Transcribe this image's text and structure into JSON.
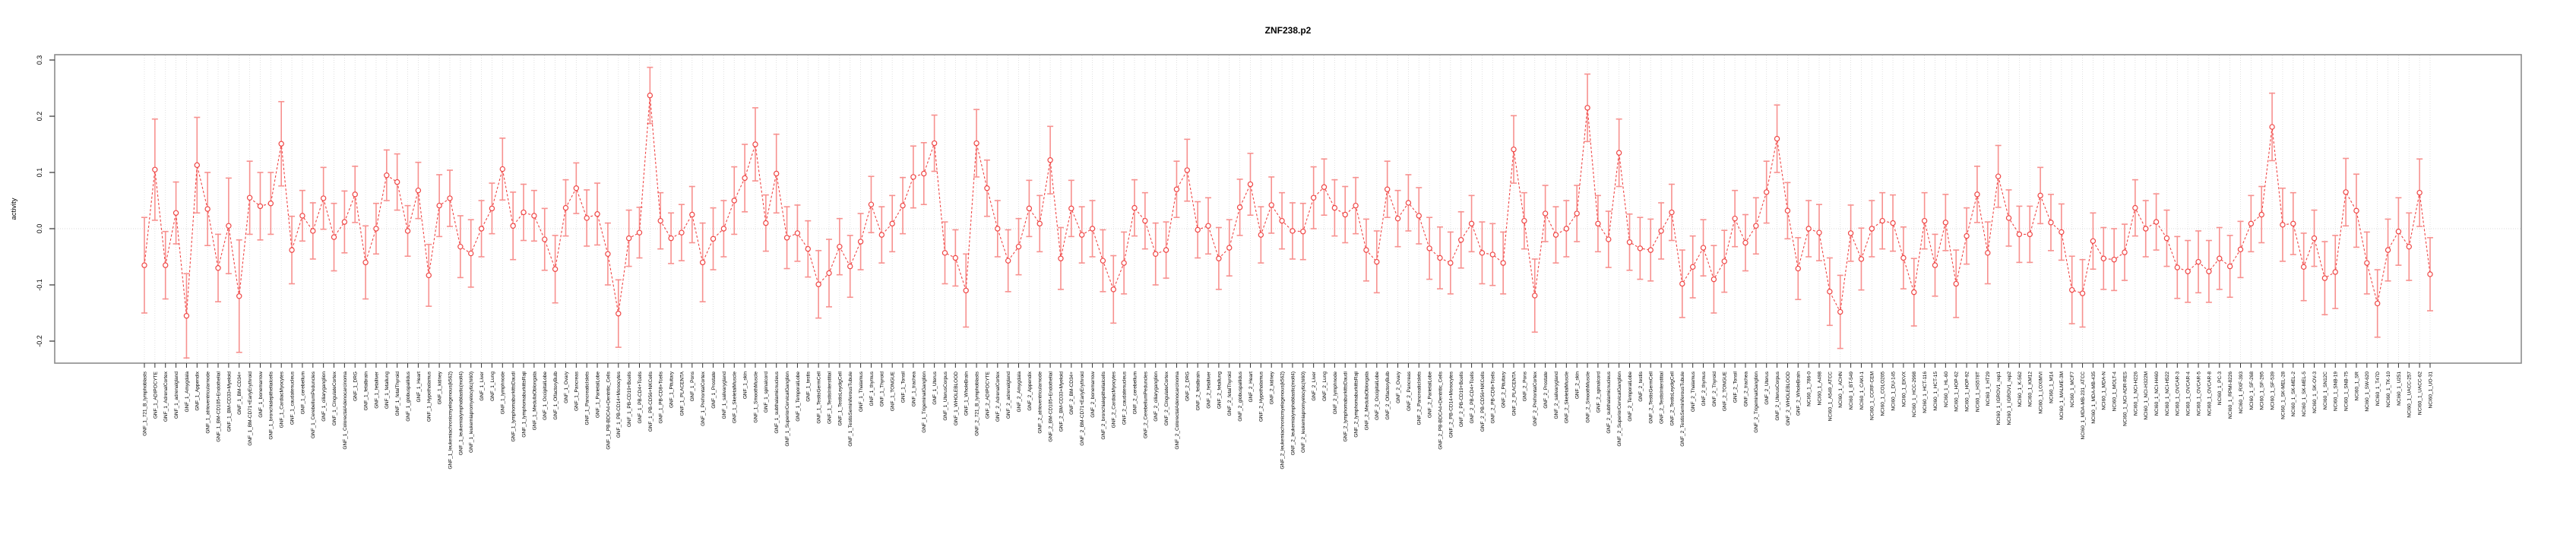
{
  "chart_data": {
    "type": "line",
    "title": "ZNF238.p2",
    "xlabel": "",
    "ylabel": "activity",
    "ylim": [
      -0.245,
      0.315
    ],
    "yticks": [
      0.3,
      0.2,
      0.1,
      0.0,
      -0.1,
      -0.2
    ],
    "ytick_labels": [
      "0.3",
      "0.2",
      "0.1",
      "0.0",
      "-0.1",
      "-0.2"
    ],
    "legend": "none",
    "grid": "dotted vertical line per category; dotted horizontal line at 0",
    "marker": "open circle with dashed connecting line and capped error bars",
    "colors": {
      "series": "#ef4645",
      "error_bars": "#f7918f",
      "grid": "#d9d9d9",
      "box": "#8c8c8c",
      "title": "#000000"
    },
    "categories": [
      "GNF_1_721_B_lymphoblasts",
      "GNF_1_ADIPOCYTE",
      "GNF_1_AdrenalCortex",
      "GNF_1_adrenalgland",
      "GNF_1_Amygdala",
      "GNF_1_Appendix",
      "GNF_1_atrioventricularnode",
      "GNF_1_BM-CD105+Endothelial",
      "GNF_1_BM-CD33+Myeloid",
      "GNF_1_BM-CD34+",
      "GNF_1_BM-CD71+EarlyErythroid",
      "GNF_1_bonemarrow",
      "GNF_1_bronchialepithelialcells",
      "GNF_1_CardiacMyocytes",
      "GNF_1_caudatenucleus",
      "GNF_1_cerebellum",
      "GNF_1_CerebellumPeduncles",
      "GNF_1_ciliaryganglion",
      "GNF_1_CingulateCortex",
      "GNF_1_ColorectalAdenocarcinoma",
      "GNF_1_DRG",
      "GNF_1_fetalbrain",
      "GNF_1_fetalliver",
      "GNF_1_fetallung",
      "GNF_1_fetalThyroid",
      "GNF_1_globuspallidus",
      "GNF_1_Heart",
      "GNF_1_Hypothalamus",
      "GNF_1_kidney",
      "GNF_1_leukemiachronicmyelogenous(k562)",
      "GNF_1_leukemialymphoblastic(molt4)",
      "GNF_1_leukemiapromyelocytic(hl60)",
      "GNF_1_Liver",
      "GNF_1_Lung",
      "GNF_1_lymphnode",
      "GNF_1_lymphomaburkittsDaudi",
      "GNF_1_lymphomaburkittsRaji",
      "GNF_1_MedullaOblongata",
      "GNF_1_OccipitalLobe",
      "GNF_1_OlfactoryBulb",
      "GNF_1_Ovary",
      "GNF_1_Pancreas",
      "GNF_1_PancreaticIslets",
      "GNF_1_ParietalLobe",
      "GNF_1_PB-BDCA4+Dentritic_Cells",
      "GNF_1_PB-CD14+Monocytes",
      "GNF_1_PB-CD19+Bcells",
      "GNF_1_PB-CD4+Tcells",
      "GNF_1_PB-CD56+NKCells",
      "GNF_1_PB-CD8+Tcells",
      "GNF_1_Pituitary",
      "GNF_1_PLACENTA",
      "GNF_1_Pons",
      "GNF_1_PrefrontalCortex",
      "GNF_1_Prostate",
      "GNF_1_salivarygland",
      "GNF_1_SkeletalMuscle",
      "GNF_1_skin",
      "GNF_1_SmoothMuscle",
      "GNF_1_spinalcord",
      "GNF_1_subthalamicnucleus",
      "GNF_1_SuperiorCervicalGanglion",
      "GNF_1_TemporalLobe",
      "GNF_1_testis",
      "GNF_1_TestisGermCell",
      "GNF_1_TestisInterstitial",
      "GNF_1_TestisLeydigCell",
      "GNF_1_TestisSeminiferousTubule",
      "GNF_1_Thalamus",
      "GNF_1_thymus",
      "GNF_1_Thyroid",
      "GNF_1_TONGUE",
      "GNF_1_Tonsil",
      "GNF_1_trachea",
      "GNF_1_TrigeminalGanglion",
      "GNF_1_Uterus",
      "GNF_1_UterusCorpus",
      "GNF_1_WHOLEBLOOD",
      "GNF_1_WholeBrain",
      "GNF_2_721_B_lymphoblasts",
      "GNF_2_ADIPOCYTE",
      "GNF_2_AdrenalCortex",
      "GNF_2_adrenalgland",
      "GNF_2_Amygdala",
      "GNF_2_Appendix",
      "GNF_2_atrioventricularnode",
      "GNF_2_BM-CD105+Endothelial",
      "GNF_2_BM-CD33+Myeloid",
      "GNF_2_BM-CD34+",
      "GNF_2_BM-CD71+EarlyErythroid",
      "GNF_2_bonemarrow",
      "GNF_2_bronchialepithelialcells",
      "GNF_2_CardiacMyocytes",
      "GNF_2_caudatenucleus",
      "GNF_2_cerebellum",
      "GNF_2_CerebellumPeduncles",
      "GNF_2_ciliaryganglion",
      "GNF_2_CingulateCortex",
      "GNF_2_ColorectalAdenocarcinoma",
      "GNF_2_DRG",
      "GNF_2_fetalbrain",
      "GNF_2_fetalliver",
      "GNF_2_fetallung",
      "GNF_2_fetalThyroid",
      "GNF_2_globuspallidus",
      "GNF_2_Heart",
      "GNF_2_Hypothalamus",
      "GNF_2_kidney",
      "GNF_2_leukemiachronicmyelogenous(k562)",
      "GNF_2_leukemialymphoblastic(molt4)",
      "GNF_2_leukemiapromyelocytic(hl60)",
      "GNF_2_Liver",
      "GNF_2_Lung",
      "GNF_2_lymphnode",
      "GNF_2_lymphomaburkittsDaudi",
      "GNF_2_lymphomaburkittsRaji",
      "GNF_2_MedullaOblongata",
      "GNF_2_OccipitalLobe",
      "GNF_2_OlfactoryBulb",
      "GNF_2_Ovary",
      "GNF_2_Pancreas",
      "GNF_2_PancreaticIslets",
      "GNF_2_ParietalLobe",
      "GNF_2_PB-BDCA4+Dentritic_Cells",
      "GNF_2_PB-CD14+Monocytes",
      "GNF_2_PB-CD19+Bcells",
      "GNF_2_PB-CD4+Tcells",
      "GNF_2_PB-CD56+NKCells",
      "GNF_2_PB-CD8+Tcells",
      "GNF_2_Pituitary",
      "GNF_2_PLACENTA",
      "GNF_2_Pons",
      "GNF_2_PrefrontalCortex",
      "GNF_2_Prostate",
      "GNF_2_salivarygland",
      "GNF_2_SkeletalMuscle",
      "GNF_2_skin",
      "GNF_2_SmoothMuscle",
      "GNF_2_spinalcord",
      "GNF_2_subthalamicnucleus",
      "GNF_2_SuperiorCervicalGanglion",
      "GNF_2_TemporalLobe",
      "GNF_2_testis",
      "GNF_2_TestisGermCell",
      "GNF_2_TestisInterstitial",
      "GNF_2_TestisLeydigCell",
      "GNF_2_TestisSeminiferousTubule",
      "GNF_2_Thalamus",
      "GNF_2_thymus",
      "GNF_2_Thyroid",
      "GNF_2_TONGUE",
      "GNF_2_Tonsil",
      "GNF_2_trachea",
      "GNF_2_TrigeminalGanglion",
      "GNF_2_Uterus",
      "GNF_2_UterusCorpus",
      "GNF_2_WHOLEBLOOD",
      "GNF_2_WholeBrain",
      "NCI60_1_786-0",
      "NCI60_1_A498",
      "NCI60_1_A549_ATCC",
      "NCI60_1_ACHN",
      "NCI60_1_BT-549",
      "NCI60_1_CAKI-1",
      "NCI60_1_CCRF-CEM",
      "NCI60_1_COLO205",
      "NCI60_1_DU-145",
      "NCI60_1_EKVX",
      "NCI60_1_HCC-2998",
      "NCI60_1_HCT-116",
      "NCI60_1_HCT-15",
      "NCI60_1_HL-60",
      "NCI60_1_HOP-62",
      "NCI60_1_HOP-92",
      "NCI60_1_HS578T",
      "NCI60_1_HT29",
      "NCI60_1_IGROV1_rep1",
      "NCI60_1_IGROV1_rep2",
      "NCI60_1_K-562",
      "NCI60_1_KM12",
      "NCI60_1_LOXIMVI",
      "NCI60_1_M14",
      "NCI60_1_MALME-3M",
      "NCI60_1_MCF7",
      "NCI60_1_MDA-MB-231_ATCC",
      "NCI60_1_MDA-MB-435",
      "NCI60_1_MDA-N",
      "NCI60_1_MOLT-4",
      "NCI60_1_NCI-ADR-RES",
      "NCI60_1_NCI-H226",
      "NCI60_1_NCI-H322M",
      "NCI60_1_NCI-H460",
      "NCI60_1_NCI-H522",
      "NCI60_1_OVCAR-3",
      "NCI60_1_OVCAR-4",
      "NCI60_1_OVCAR-5",
      "NCI60_1_OVCAR-8",
      "NCI60_1_PC-3",
      "NCI60_1_RPMI-8226",
      "NCI60_1_RXF-393",
      "NCI60_1_SF-268",
      "NCI60_1_SF-295",
      "NCI60_1_SF-539",
      "NCI60_1_SK-MEL-28",
      "NCI60_1_SK-MEL-2",
      "NCI60_1_SK-MEL-5",
      "NCI60_1_SK-OV-3",
      "NCI60_1_SN12C",
      "NCI60_1_SNB-19",
      "NCI60_1_SNB-75",
      "NCI60_1_SR",
      "NCI60_1_SW-620",
      "NCI60_1_T47D",
      "NCI60_1_TK-10",
      "NCI60_1_U251",
      "NCI60_1_UACC-257",
      "NCI60_1_UACC-62",
      "NCI60_1_UO-31"
    ],
    "values": [
      -0.065,
      0.105,
      -0.065,
      0.028,
      -0.155,
      0.113,
      0.035,
      -0.07,
      0.005,
      -0.12,
      0.055,
      0.04,
      0.045,
      0.151,
      -0.038,
      0.023,
      -0.004,
      0.054,
      -0.015,
      0.012,
      0.061,
      -0.06,
      0.0,
      0.095,
      0.083,
      -0.004,
      0.068,
      -0.083,
      0.041,
      0.054,
      -0.032,
      -0.044,
      0.0,
      0.036,
      0.106,
      0.005,
      0.029,
      0.023,
      -0.019,
      -0.072,
      0.037,
      0.072,
      0.019,
      0.026,
      -0.045,
      -0.151,
      -0.017,
      -0.007,
      0.237,
      0.014,
      -0.017,
      -0.007,
      0.025,
      -0.06,
      -0.018,
      0.0,
      0.05,
      0.09,
      0.15,
      0.01,
      0.098,
      -0.016,
      -0.008,
      -0.036,
      -0.099,
      -0.079,
      -0.032,
      -0.067,
      -0.023,
      0.043,
      -0.011,
      0.009,
      0.041,
      0.092,
      0.098,
      0.152,
      -0.043,
      -0.052,
      -0.11,
      0.152,
      0.072,
      0.0,
      -0.057,
      -0.032,
      0.036,
      0.009,
      0.122,
      -0.053,
      0.036,
      -0.011,
      0.0,
      -0.057,
      -0.108,
      -0.061,
      0.037,
      0.014,
      -0.045,
      -0.038,
      0.07,
      0.104,
      -0.002,
      0.005,
      -0.053,
      -0.034,
      0.038,
      0.079,
      -0.011,
      0.042,
      0.014,
      -0.004,
      -0.005,
      0.055,
      0.074,
      0.037,
      0.025,
      0.041,
      -0.038,
      -0.059,
      0.07,
      0.018,
      0.046,
      0.023,
      -0.035,
      -0.052,
      -0.061,
      -0.02,
      0.009,
      -0.043,
      -0.046,
      -0.061,
      0.141,
      0.014,
      -0.119,
      0.027,
      -0.011,
      0.0,
      0.027,
      0.215,
      0.009,
      -0.019,
      0.135,
      -0.024,
      -0.035,
      -0.038,
      -0.004,
      0.029,
      -0.098,
      -0.068,
      -0.034,
      -0.09,
      -0.058,
      0.018,
      -0.025,
      0.005,
      0.065,
      0.16,
      0.032,
      -0.071,
      0.0,
      -0.007,
      -0.112,
      -0.148,
      -0.008,
      -0.054,
      0.0,
      0.014,
      0.01,
      -0.052,
      -0.113,
      0.014,
      -0.065,
      0.011,
      -0.098,
      -0.013,
      0.061,
      -0.043,
      0.093,
      0.019,
      -0.01,
      -0.01,
      0.059,
      0.011,
      -0.006,
      -0.109,
      -0.115,
      -0.022,
      -0.053,
      -0.055,
      -0.042,
      0.037,
      0.0,
      0.012,
      -0.017,
      -0.069,
      -0.076,
      -0.059,
      -0.076,
      -0.053,
      -0.067,
      -0.037,
      0.009,
      0.025,
      0.181,
      0.007,
      0.009,
      -0.068,
      -0.017,
      -0.088,
      -0.077,
      0.065,
      0.032,
      -0.061,
      -0.133,
      -0.038,
      -0.005,
      -0.032,
      0.064,
      -0.081
    ],
    "errors": [
      0.085,
      0.09,
      0.06,
      0.055,
      0.075,
      0.085,
      0.065,
      0.06,
      0.085,
      0.1,
      0.065,
      0.06,
      0.055,
      0.075,
      0.06,
      0.045,
      0.05,
      0.055,
      0.06,
      0.055,
      0.05,
      0.065,
      0.045,
      0.045,
      0.05,
      0.045,
      0.05,
      0.055,
      0.055,
      0.05,
      0.055,
      0.06,
      0.05,
      0.045,
      0.055,
      0.06,
      0.05,
      0.045,
      0.055,
      0.06,
      0.05,
      0.045,
      0.05,
      0.055,
      0.055,
      0.06,
      0.05,
      0.045,
      0.05,
      0.05,
      0.045,
      0.05,
      0.05,
      0.07,
      0.055,
      0.05,
      0.06,
      0.06,
      0.065,
      0.05,
      0.07,
      0.055,
      0.05,
      0.05,
      0.06,
      0.06,
      0.05,
      0.055,
      0.05,
      0.05,
      0.05,
      0.05,
      0.05,
      0.055,
      0.055,
      0.05,
      0.055,
      0.05,
      0.065,
      0.06,
      0.05,
      0.05,
      0.055,
      0.05,
      0.05,
      0.05,
      0.06,
      0.055,
      0.05,
      0.05,
      0.05,
      0.055,
      0.06,
      0.055,
      0.05,
      0.05,
      0.055,
      0.05,
      0.05,
      0.055,
      0.05,
      0.05,
      0.055,
      0.05,
      0.05,
      0.055,
      0.05,
      0.05,
      0.05,
      0.05,
      0.05,
      0.055,
      0.05,
      0.05,
      0.05,
      0.05,
      0.055,
      0.055,
      0.05,
      0.05,
      0.05,
      0.05,
      0.055,
      0.055,
      0.055,
      0.05,
      0.05,
      0.055,
      0.055,
      0.055,
      0.06,
      0.05,
      0.065,
      0.05,
      0.05,
      0.05,
      0.05,
      0.06,
      0.05,
      0.05,
      0.06,
      0.05,
      0.055,
      0.055,
      0.05,
      0.05,
      0.06,
      0.055,
      0.05,
      0.06,
      0.055,
      0.05,
      0.05,
      0.05,
      0.055,
      0.06,
      0.05,
      0.055,
      0.05,
      0.05,
      0.06,
      0.065,
      0.05,
      0.055,
      0.05,
      0.05,
      0.05,
      0.055,
      0.06,
      0.05,
      0.055,
      0.05,
      0.06,
      0.05,
      0.05,
      0.055,
      0.055,
      0.05,
      0.05,
      0.05,
      0.05,
      0.05,
      0.05,
      0.06,
      0.06,
      0.05,
      0.055,
      0.055,
      0.05,
      0.05,
      0.05,
      0.05,
      0.05,
      0.055,
      0.055,
      0.055,
      0.055,
      0.055,
      0.055,
      0.05,
      0.05,
      0.05,
      0.06,
      0.065,
      0.055,
      0.06,
      0.05,
      0.065,
      0.065,
      0.06,
      0.065,
      0.055,
      0.06,
      0.055,
      0.06,
      0.06,
      0.06,
      0.065
    ]
  }
}
